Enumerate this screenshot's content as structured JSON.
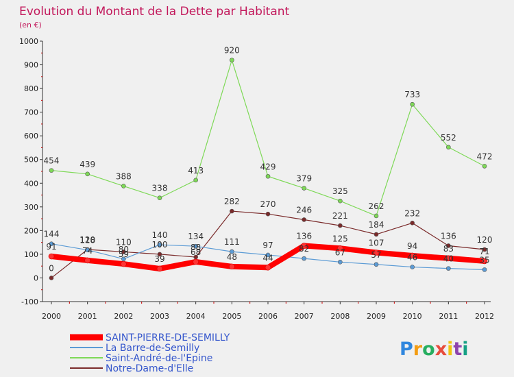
{
  "chart_data": {
    "type": "line",
    "title": "Evolution du Montant de la Dette par Habitant",
    "subtitle": "(en €)",
    "x": [
      "2000",
      "2001",
      "2002",
      "2003",
      "2004",
      "2005",
      "2006",
      "2007",
      "2008",
      "2009",
      "2010",
      "2011",
      "2012"
    ],
    "ylim": [
      -100,
      1000
    ],
    "yticks": [
      -100,
      0,
      100,
      200,
      300,
      400,
      500,
      600,
      700,
      800,
      900,
      1000
    ],
    "grid": false,
    "legend_position": "bottom-left",
    "series": [
      {
        "name": "SAINT-PIERRE-DE-SEMILLY",
        "color": "#ff0000",
        "values": [
          91,
          74,
          59,
          39,
          68,
          48,
          44,
          136,
          125,
          107,
          94,
          83,
          71
        ]
      },
      {
        "name": "La Barre-de-Semilly",
        "color": "#5b9bd5",
        "values": [
          144,
          118,
          80,
          140,
          134,
          111,
          97,
          82,
          67,
          57,
          46,
          40,
          35
        ]
      },
      {
        "name": "Saint-André-de-l'Epine",
        "color": "#7ed957",
        "values": [
          454,
          439,
          388,
          338,
          413,
          920,
          429,
          379,
          325,
          262,
          733,
          552,
          472
        ]
      },
      {
        "name": "Notre-Dame-d'Elle",
        "color": "#7a2a2a",
        "values": [
          0,
          120,
          110,
          100,
          88,
          282,
          270,
          246,
          221,
          184,
          232,
          136,
          120
        ]
      }
    ]
  },
  "colors": {
    "title": "#c2185b",
    "legend_text": "#3355cc",
    "axis": "#333333",
    "tick_red": "#cc0000"
  },
  "brand": "Proxiti"
}
